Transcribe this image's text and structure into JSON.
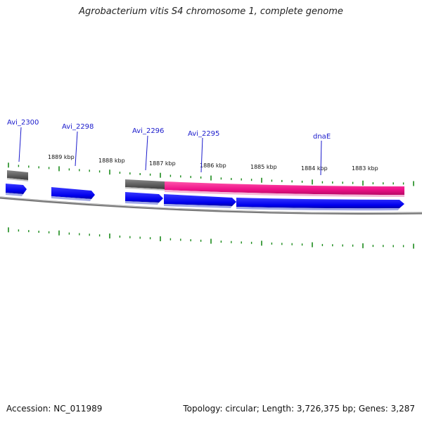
{
  "map": {
    "title": "Agrobacterium vitis S4 chromosome 1, complete genome",
    "accession": "Accession: NC_011989",
    "summary": "Topology: circular; Length: 3,726,375 bp; Genes: 3,287"
  },
  "colors": {
    "forward_gene": "#0000ee",
    "cds_feature": "#ee1188",
    "other_feature": "#666666",
    "backbone": "#888888",
    "tick": "#1a8a1a",
    "gene_label": "#1a1acc"
  },
  "scale": {
    "major_ticks": [
      {
        "label": "1889 kbp",
        "kbp": 1889
      },
      {
        "label": "1888 kbp",
        "kbp": 1888
      },
      {
        "label": "1887 kbp",
        "kbp": 1887
      },
      {
        "label": "1886 kbp",
        "kbp": 1886
      },
      {
        "label": "1885 kbp",
        "kbp": 1885
      },
      {
        "label": "1884 kbp",
        "kbp": 1884
      },
      {
        "label": "1883 kbp",
        "kbp": 1883
      }
    ]
  },
  "gene_labels": [
    "Avi_2300",
    "Avi_2298",
    "Avi_2296",
    "Avi_2295",
    "dnaE"
  ],
  "features": [
    {
      "kind": "other",
      "lane": "outer",
      "gene": "Avi_2300"
    },
    {
      "kind": "gene",
      "lane": "inner",
      "gene": "Avi_2300"
    },
    {
      "kind": "gene",
      "lane": "inner",
      "gene": "Avi_2298"
    },
    {
      "kind": "other",
      "lane": "outer",
      "gene": "Avi_2296"
    },
    {
      "kind": "gene",
      "lane": "inner",
      "gene": "Avi_2296"
    },
    {
      "kind": "cds",
      "lane": "outer",
      "gene": "Avi_2295 / dnaE"
    },
    {
      "kind": "gene",
      "lane": "inner",
      "gene": "Avi_2295"
    },
    {
      "kind": "gene",
      "lane": "inner",
      "gene": "dnaE"
    }
  ]
}
